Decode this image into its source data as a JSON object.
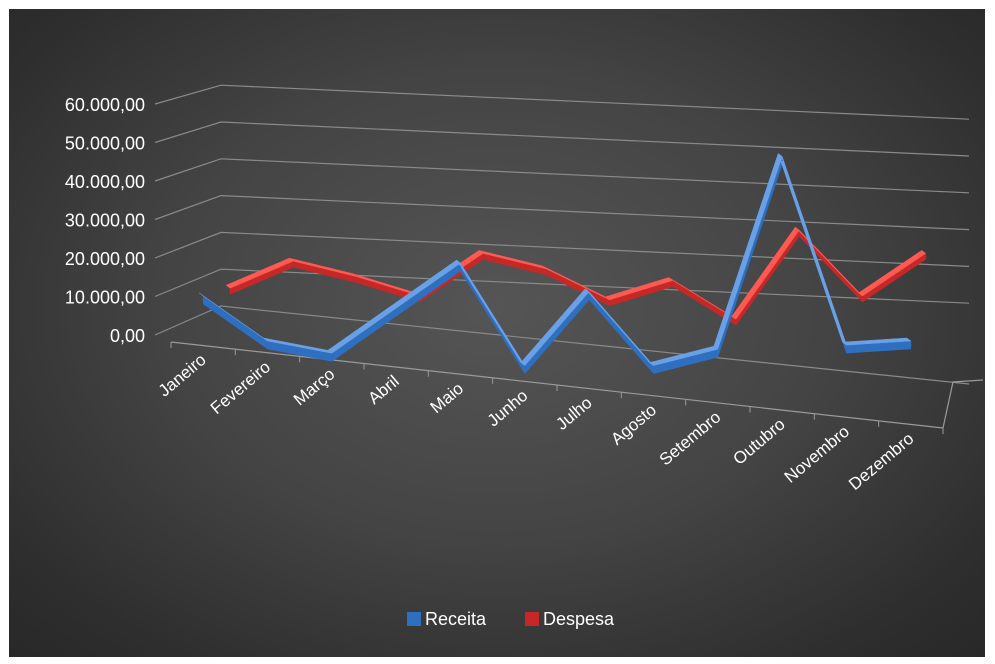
{
  "chart_data": {
    "type": "line",
    "style": "3d-line",
    "categories": [
      "Janeiro",
      "Fevereiro",
      "Março",
      "Abril",
      "Maio",
      "Junho",
      "Julho",
      "Agosto",
      "Setembro",
      "Outubro",
      "Novembro",
      "Dezembro"
    ],
    "series": [
      {
        "name": "Receita",
        "color": "#2f6fc0",
        "values": [
          21000,
          10000,
          7000,
          18000,
          29000,
          4000,
          22000,
          4000,
          8000,
          55000,
          9000,
          10000
        ]
      },
      {
        "name": "Despesa",
        "color": "#c62828",
        "values": [
          14000,
          21000,
          17000,
          12000,
          23000,
          19000,
          11000,
          16000,
          6000,
          29000,
          12000,
          23000
        ]
      }
    ],
    "y_ticks": [
      "0,00",
      "10.000,00",
      "20.000,00",
      "30.000,00",
      "40.000,00",
      "50.000,00",
      "60.000,00"
    ],
    "ylim": [
      0,
      60000
    ],
    "grid": true,
    "legend_position": "bottom",
    "background": "#444444"
  }
}
